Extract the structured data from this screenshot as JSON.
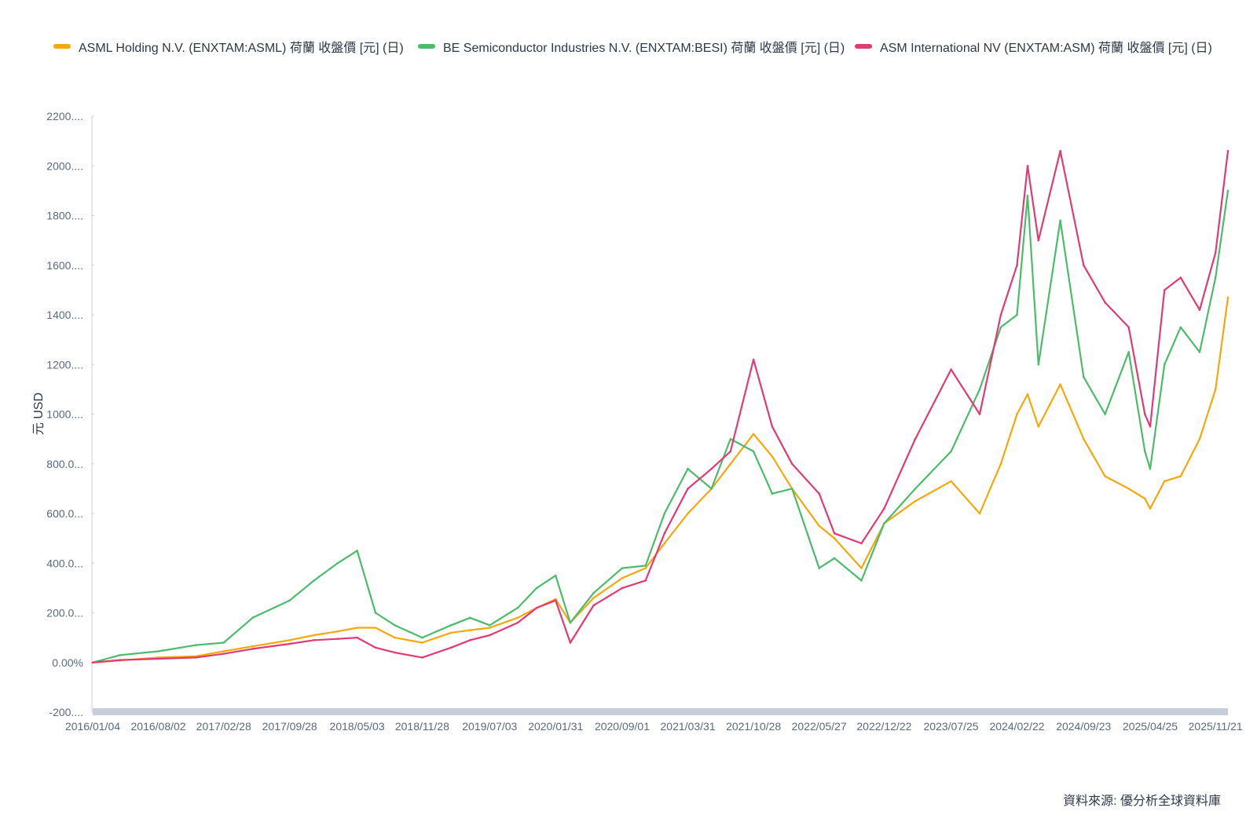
{
  "chart_data": {
    "type": "line",
    "title": "",
    "xlabel": "",
    "ylabel": "元 USD",
    "y_tick_labels": [
      "2200....",
      "2000....",
      "1800....",
      "1600....",
      "1400....",
      "1200....",
      "1000....",
      "800.0...",
      "600.0...",
      "400.0...",
      "200.0...",
      "0.00%",
      "-200...."
    ],
    "ylim": [
      -200,
      2200
    ],
    "x_tick_labels": [
      "2016/01/04",
      "2016/08/02",
      "2017/02/28",
      "2017/09/28",
      "2018/05/03",
      "2018/11/28",
      "2019/07/03",
      "2020/01/31",
      "2020/09/01",
      "2021/03/31",
      "2021/10/28",
      "2022/05/27",
      "2022/12/22",
      "2023/07/25",
      "2024/02/22",
      "2024/09/23",
      "2025/04/25",
      "2025/11/21"
    ],
    "xlim": [
      "2016/01/04",
      "2025/12/31"
    ],
    "legend_position": "top",
    "grid": false,
    "x": [
      "2016/01/04",
      "2016/04/01",
      "2016/08/02",
      "2016/12/01",
      "2017/02/28",
      "2017/06/01",
      "2017/09/28",
      "2017/12/15",
      "2018/03/01",
      "2018/05/03",
      "2018/07/01",
      "2018/09/01",
      "2018/11/28",
      "2019/03/01",
      "2019/05/01",
      "2019/07/03",
      "2019/10/01",
      "2019/12/01",
      "2020/01/31",
      "2020/03/18",
      "2020/06/01",
      "2020/09/01",
      "2020/11/15",
      "2021/01/15",
      "2021/03/31",
      "2021/06/15",
      "2021/08/15",
      "2021/10/28",
      "2021/12/27",
      "2022/03/01",
      "2022/05/27",
      "2022/07/15",
      "2022/10/10",
      "2022/12/22",
      "2023/04/01",
      "2023/07/25",
      "2023/10/25",
      "2024/01/01",
      "2024/02/22",
      "2024/03/27",
      "2024/05/01",
      "2024/07/10",
      "2024/09/23",
      "2024/12/01",
      "2025/02/15",
      "2025/04/08",
      "2025/04/25",
      "2025/06/10",
      "2025/08/01",
      "2025/10/01",
      "2025/11/21",
      "2025/12/31"
    ],
    "series": [
      {
        "name": "ASML Holding N.V. (ENXTAM:ASML) 荷蘭 收盤價 [元] (日)",
        "color": "#f5a80c",
        "values": [
          0,
          8,
          20,
          25,
          45,
          65,
          90,
          110,
          125,
          140,
          140,
          100,
          80,
          120,
          130,
          140,
          180,
          220,
          255,
          160,
          260,
          340,
          380,
          480,
          600,
          700,
          800,
          920,
          830,
          700,
          550,
          500,
          380,
          560,
          650,
          730,
          600,
          800,
          1000,
          1080,
          950,
          1120,
          900,
          750,
          700,
          660,
          620,
          730,
          750,
          900,
          1100,
          1470
        ]
      },
      {
        "name": "BE Semiconductor Industries N.V. (ENXTAM:BESI) 荷蘭 收盤價 [元] (日)",
        "color": "#4cbb6c",
        "values": [
          0,
          30,
          45,
          70,
          80,
          180,
          250,
          330,
          400,
          450,
          200,
          150,
          100,
          150,
          180,
          150,
          220,
          300,
          350,
          160,
          280,
          380,
          390,
          600,
          780,
          700,
          900,
          850,
          680,
          700,
          380,
          420,
          330,
          560,
          700,
          850,
          1100,
          1350,
          1400,
          1880,
          1200,
          1780,
          1150,
          1000,
          1250,
          850,
          780,
          1200,
          1350,
          1250,
          1550,
          1900
        ]
      },
      {
        "name": "ASM International NV (ENXTAM:ASM) 荷蘭 收盤價 [元] (日)",
        "color": "#e23a72",
        "values": [
          0,
          10,
          15,
          20,
          35,
          55,
          75,
          90,
          95,
          100,
          60,
          40,
          20,
          60,
          90,
          110,
          160,
          220,
          250,
          80,
          230,
          300,
          330,
          520,
          700,
          780,
          850,
          1220,
          950,
          800,
          680,
          520,
          480,
          620,
          900,
          1180,
          1000,
          1400,
          1600,
          2000,
          1700,
          2060,
          1600,
          1450,
          1350,
          1000,
          950,
          1500,
          1550,
          1420,
          1650,
          2060
        ]
      }
    ]
  },
  "source_note": "資料來源: 優分析全球資料庫"
}
